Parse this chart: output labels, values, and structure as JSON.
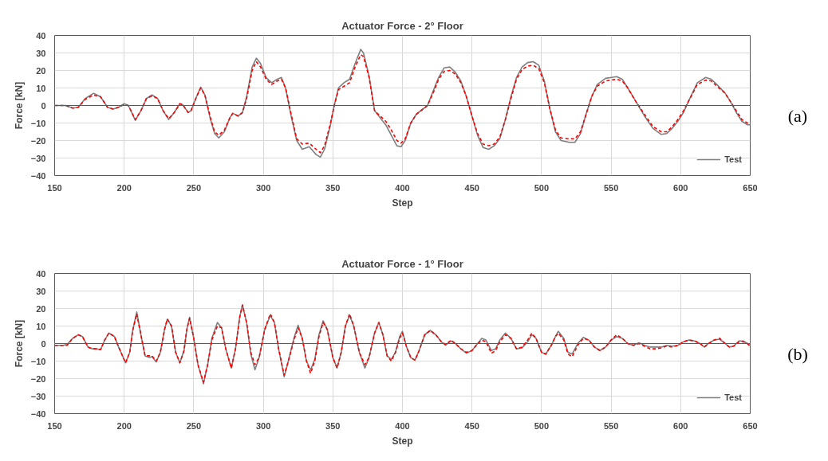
{
  "chart_data": [
    {
      "type": "line",
      "title": "Actuator Force - 2° Floor",
      "xlabel": "Step",
      "ylabel": "Force [kN]",
      "xlim": [
        150,
        650
      ],
      "xticks": [
        150,
        200,
        250,
        300,
        350,
        400,
        450,
        500,
        550,
        600,
        650
      ],
      "ylim": [
        -40,
        40
      ],
      "yticks": [
        -40,
        -30,
        -20,
        -10,
        0,
        10,
        20,
        30,
        40
      ],
      "grid": true,
      "legend": "bottom right",
      "annotations": [
        "(a)"
      ],
      "ref_lines": [
        {
          "axis": "y",
          "value": 0,
          "color": "#595959"
        }
      ],
      "series": [
        {
          "name": "Test",
          "color": "#7f7f7f",
          "line_style": "solid",
          "x": [
            150,
            158,
            163,
            167,
            172,
            178,
            183,
            188,
            192,
            196,
            200,
            203,
            208,
            212,
            216,
            220,
            224,
            228,
            232,
            236,
            240,
            242,
            246,
            248,
            252,
            255,
            258,
            262,
            265,
            268,
            272,
            276,
            278,
            282,
            285,
            288,
            292,
            295,
            298,
            302,
            306,
            310,
            313,
            316,
            320,
            324,
            328,
            333,
            338,
            341,
            344,
            348,
            351,
            354,
            358,
            362,
            366,
            370,
            372,
            376,
            380,
            384,
            388,
            392,
            396,
            399,
            402,
            406,
            410,
            414,
            418,
            422,
            426,
            430,
            434,
            438,
            442,
            446,
            450,
            454,
            458,
            462,
            466,
            470,
            474,
            478,
            482,
            486,
            490,
            494,
            498,
            502,
            506,
            510,
            514,
            520,
            524,
            528,
            532,
            536,
            540,
            546,
            554,
            558,
            562,
            568,
            574,
            580,
            586,
            590,
            594,
            598,
            602,
            606,
            612,
            618,
            622,
            626,
            632,
            636,
            640,
            644,
            648,
            650
          ],
          "values": [
            0,
            0,
            -1.5,
            -1,
            4,
            7,
            5,
            -1,
            -2,
            -1,
            1,
            0,
            -8.5,
            -3,
            4,
            6,
            4,
            -3,
            -8,
            -4,
            1,
            0.5,
            -4,
            -3,
            5,
            10.5,
            6,
            -8,
            -16,
            -18.5,
            -15,
            -7,
            -4.5,
            -6,
            -4,
            5,
            22,
            27,
            24,
            16,
            13,
            15,
            16,
            10,
            -6,
            -20,
            -25,
            -23.5,
            -28,
            -29.5,
            -25,
            -12,
            0,
            10,
            13,
            15,
            24,
            32,
            30,
            17,
            -3,
            -7,
            -11,
            -17,
            -23,
            -23.5,
            -20,
            -10,
            -5,
            -2.5,
            0,
            8,
            16,
            21.5,
            22,
            19,
            14,
            5,
            -6,
            -17,
            -24,
            -25,
            -23,
            -19,
            -8,
            5,
            16,
            22,
            24.5,
            25,
            23,
            14,
            -2,
            -15,
            -20,
            -21,
            -21,
            -16,
            -5,
            5,
            12,
            15.5,
            16.5,
            15,
            10,
            2,
            -6,
            -13,
            -16.5,
            -16,
            -13,
            -9,
            -4,
            3,
            13,
            16,
            15,
            12,
            7,
            2,
            -4,
            -9,
            -11,
            -11
          ]
        },
        {
          "color": "#ff0000",
          "line_style": "dashed",
          "x": [
            150,
            158,
            163,
            167,
            172,
            178,
            183,
            188,
            192,
            196,
            200,
            203,
            208,
            212,
            216,
            220,
            224,
            228,
            232,
            236,
            240,
            242,
            246,
            248,
            252,
            255,
            258,
            262,
            265,
            268,
            272,
            276,
            278,
            282,
            285,
            288,
            292,
            295,
            298,
            302,
            306,
            310,
            313,
            316,
            320,
            324,
            328,
            333,
            338,
            341,
            344,
            348,
            351,
            354,
            358,
            362,
            366,
            370,
            372,
            376,
            380,
            384,
            388,
            392,
            396,
            399,
            402,
            406,
            410,
            414,
            418,
            422,
            426,
            430,
            434,
            438,
            442,
            446,
            450,
            454,
            458,
            462,
            466,
            470,
            474,
            478,
            482,
            486,
            490,
            494,
            498,
            502,
            506,
            510,
            514,
            520,
            524,
            528,
            532,
            536,
            540,
            546,
            554,
            558,
            562,
            568,
            574,
            580,
            586,
            590,
            594,
            598,
            602,
            606,
            612,
            618,
            622,
            626,
            632,
            636,
            640,
            644,
            648,
            650
          ],
          "values": [
            0,
            0,
            -1.5,
            -1,
            3.5,
            6,
            5,
            -1,
            -2,
            -1,
            0.5,
            0,
            -8,
            -3,
            4,
            5.5,
            4,
            -3,
            -7.5,
            -4,
            1,
            0.5,
            -4,
            -3,
            5,
            10,
            6,
            -7,
            -15,
            -17,
            -14,
            -7,
            -4.5,
            -6,
            -4,
            4,
            20,
            25,
            22,
            15,
            12,
            14,
            15,
            10,
            -5,
            -19,
            -22,
            -21.5,
            -25,
            -27,
            -23,
            -11,
            0,
            9,
            11,
            13,
            22,
            29,
            28,
            16,
            -3,
            -6,
            -9,
            -14,
            -20,
            -21.5,
            -19,
            -10,
            -5,
            -2.5,
            0,
            7,
            15,
            19.5,
            20,
            18,
            13,
            5,
            -6,
            -16,
            -22,
            -23,
            -22,
            -18,
            -8,
            4,
            15,
            20.5,
            22.5,
            23,
            21,
            13,
            -2,
            -14,
            -18.5,
            -19,
            -19,
            -15,
            -5,
            5,
            11,
            14,
            15,
            14,
            10,
            2,
            -5,
            -12,
            -15,
            -15,
            -12,
            -8,
            -3,
            3,
            12,
            14.5,
            14,
            11,
            7,
            2,
            -3,
            -8,
            -10,
            -10
          ]
        }
      ]
    },
    {
      "type": "line",
      "title": "Actuator Force - 1° Floor",
      "xlabel": "Step",
      "ylabel": "Force [kN]",
      "xlim": [
        150,
        650
      ],
      "xticks": [
        150,
        200,
        250,
        300,
        350,
        400,
        450,
        500,
        550,
        600,
        650
      ],
      "ylim": [
        -40,
        40
      ],
      "yticks": [
        -40,
        -30,
        -20,
        -10,
        0,
        10,
        20,
        30,
        40
      ],
      "grid": true,
      "legend": "bottom right",
      "annotations": [
        "(b)"
      ],
      "ref_lines": [
        {
          "axis": "y",
          "value": 0,
          "color": "#595959"
        }
      ],
      "series": [
        {
          "name": "Test",
          "color": "#7f7f7f",
          "line_style": "solid",
          "x": [
            150,
            156,
            159,
            163,
            167,
            170,
            174,
            177,
            180,
            183,
            186,
            189,
            193,
            196,
            201,
            204,
            206,
            209,
            212,
            215,
            218,
            220,
            223,
            226,
            229,
            231,
            234,
            237,
            240,
            243,
            245,
            247,
            250,
            253,
            257,
            260,
            263,
            267,
            270,
            273,
            277,
            280,
            283,
            285,
            288,
            291,
            294,
            297,
            301,
            305,
            308,
            311,
            315,
            318,
            322,
            325,
            328,
            331,
            334,
            337,
            340,
            343,
            346,
            350,
            353,
            356,
            359,
            362,
            365,
            369,
            373,
            376,
            380,
            383,
            386,
            389,
            392,
            395,
            398,
            400,
            403,
            406,
            409,
            412,
            416,
            420,
            424,
            428,
            431,
            435,
            438,
            442,
            446,
            450,
            453,
            457,
            460,
            464,
            467,
            470,
            474,
            478,
            482,
            486,
            490,
            493,
            496,
            500,
            503,
            507,
            510,
            512,
            516,
            519,
            522,
            526,
            530,
            534,
            538,
            542,
            546,
            550,
            554,
            558,
            562,
            566,
            570,
            574,
            578,
            582,
            586,
            590,
            594,
            598,
            602,
            606,
            610,
            614,
            617,
            620,
            624,
            628,
            632,
            635,
            638,
            642,
            645,
            648,
            650
          ],
          "values": [
            -1,
            -1,
            -0.5,
            3,
            5,
            4,
            -2,
            -3,
            -3,
            -3.5,
            2,
            6,
            4,
            -2,
            -11,
            -5,
            7,
            18,
            5,
            -7,
            -8,
            -7.5,
            -10.5,
            -5,
            8,
            14,
            10,
            -5,
            -11,
            -4,
            8,
            15,
            3,
            -12,
            -23,
            -12,
            3,
            12,
            9,
            -3,
            -14,
            -3,
            15,
            22,
            12,
            -6,
            -15,
            -8,
            8,
            16,
            12,
            -3,
            -19,
            -10,
            3,
            10.5,
            3,
            -10,
            -15,
            -9,
            5,
            13,
            8,
            -8,
            -14,
            -5,
            10,
            16,
            10,
            -5,
            -14,
            -8,
            6,
            12,
            5,
            -7,
            -9,
            -5,
            4,
            7,
            -2,
            -8,
            -9.5,
            -4,
            5,
            7.5,
            5,
            1,
            -1,
            1.5,
            0,
            -3,
            -5.5,
            -4,
            -1,
            3,
            2,
            -4,
            -3,
            2,
            6,
            3,
            -3,
            -2.5,
            1,
            5,
            3,
            -5,
            -6,
            -1,
            4,
            7,
            3,
            -5,
            -6,
            0,
            3.5,
            2,
            -2,
            -4,
            -2,
            2,
            4,
            3,
            0,
            -1,
            0.5,
            -1,
            -2,
            -2,
            -2,
            -1,
            -1.5,
            -1,
            1,
            2,
            1.5,
            0,
            -2,
            0,
            2,
            2.5,
            0,
            -2,
            -1.5,
            1.5,
            1.5,
            0,
            -1
          ]
        },
        {
          "color": "#ff0000",
          "line_style": "dashed",
          "x": [
            150,
            156,
            159,
            163,
            167,
            170,
            174,
            177,
            180,
            183,
            186,
            189,
            193,
            196,
            201,
            204,
            206,
            209,
            212,
            215,
            218,
            220,
            223,
            226,
            229,
            231,
            234,
            237,
            240,
            243,
            245,
            247,
            250,
            253,
            257,
            260,
            263,
            267,
            270,
            273,
            277,
            280,
            283,
            285,
            288,
            291,
            294,
            297,
            301,
            305,
            308,
            311,
            315,
            318,
            322,
            325,
            328,
            331,
            334,
            337,
            340,
            343,
            346,
            350,
            353,
            356,
            359,
            362,
            365,
            369,
            373,
            376,
            380,
            383,
            386,
            389,
            392,
            395,
            398,
            400,
            403,
            406,
            409,
            412,
            416,
            420,
            424,
            428,
            431,
            435,
            438,
            442,
            446,
            450,
            453,
            457,
            460,
            464,
            467,
            470,
            474,
            478,
            482,
            486,
            490,
            493,
            496,
            500,
            503,
            507,
            510,
            512,
            516,
            519,
            522,
            526,
            530,
            534,
            538,
            542,
            546,
            550,
            554,
            558,
            562,
            566,
            570,
            574,
            578,
            582,
            586,
            590,
            594,
            598,
            602,
            606,
            610,
            614,
            617,
            620,
            624,
            628,
            632,
            635,
            638,
            642,
            645,
            648,
            650
          ],
          "values": [
            -1,
            -1,
            -1,
            3,
            5,
            4,
            -2,
            -3,
            -3,
            -3.5,
            2,
            6,
            4,
            -2,
            -11,
            -5,
            7,
            17,
            5,
            -7,
            -7,
            -7,
            -10,
            -5,
            8,
            14,
            10,
            -5,
            -11,
            -4,
            8,
            14.5,
            3,
            -12,
            -22,
            -12,
            2,
            10,
            9,
            -3,
            -14,
            -3,
            15,
            22,
            12,
            -5,
            -12,
            -8,
            8,
            17,
            12,
            -3,
            -18,
            -10,
            2,
            9,
            3,
            -10,
            -17,
            -10,
            4,
            12,
            8,
            -8,
            -14,
            -5,
            10,
            17,
            10,
            -5,
            -12,
            -8,
            6,
            12,
            5,
            -7,
            -10,
            -5,
            3,
            6,
            -2,
            -8,
            -9.5,
            -4,
            5,
            7.5,
            5,
            1,
            -0.5,
            2,
            0,
            -3,
            -5,
            -4,
            -1,
            2,
            1,
            -5.5,
            -4,
            1,
            5,
            3,
            -3,
            -2,
            2,
            6,
            3,
            -5,
            -6,
            -1,
            4,
            6,
            2,
            -6,
            -7.5,
            -1,
            3,
            2,
            -2,
            -4,
            -2,
            2,
            5,
            3,
            0,
            -1,
            0,
            -1.5,
            -3,
            -3,
            -2.5,
            -1.5,
            -2,
            -1,
            1,
            2,
            1.5,
            0,
            -2,
            0,
            2,
            3,
            0,
            -2,
            -1.5,
            1,
            1,
            0,
            -2
          ]
        }
      ]
    }
  ]
}
